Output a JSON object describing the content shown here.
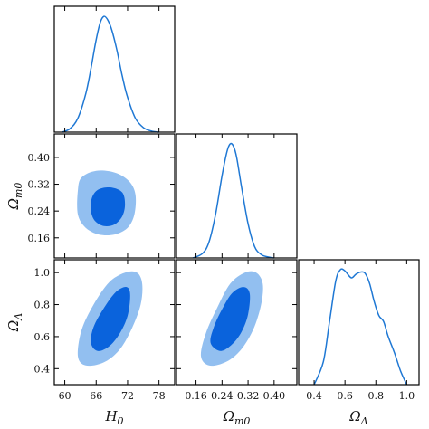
{
  "chart_data": {
    "type": "corner",
    "params": [
      {
        "key": "H0",
        "label_base": "H",
        "label_sub": "0",
        "range": [
          58,
          81
        ],
        "ticks": [
          60,
          66,
          72,
          78
        ]
      },
      {
        "key": "Om",
        "label_base": "Ω",
        "label_sub": "m0",
        "range": [
          0.1,
          0.47
        ],
        "ticks": [
          0.16,
          0.24,
          0.32,
          0.4
        ]
      },
      {
        "key": "OL",
        "label_base": "Ω",
        "label_sub": "Λ",
        "range": [
          0.3,
          1.08
        ],
        "ticks": [
          0.4,
          0.6,
          0.8,
          1.0
        ]
      }
    ],
    "y_ticks": {
      "Om": [
        "0.40",
        "0.32",
        "0.24",
        "0.16"
      ],
      "OL": [
        "1.0",
        "0.8",
        "0.6",
        "0.4"
      ]
    },
    "x_tick_labels": {
      "H0": [
        "60",
        "66",
        "72",
        "78"
      ],
      "Om": [
        "0.16",
        "0.24",
        "0.32",
        "0.40"
      ],
      "OL": [
        "0.4",
        "0.6",
        "0.8",
        "1.0"
      ]
    },
    "marginals": {
      "H0": {
        "x": [
          59.5,
          61,
          62.5,
          64,
          65,
          66,
          66.8,
          67.5,
          68.2,
          69,
          70,
          71,
          72,
          73.5,
          75,
          76.5,
          78
        ],
        "y": [
          0.0,
          0.03,
          0.12,
          0.33,
          0.55,
          0.8,
          0.95,
          1.0,
          0.97,
          0.88,
          0.7,
          0.48,
          0.3,
          0.12,
          0.04,
          0.01,
          0.0
        ]
      },
      "Om": {
        "x": [
          0.15,
          0.18,
          0.2,
          0.22,
          0.24,
          0.255,
          0.265,
          0.275,
          0.285,
          0.3,
          0.32,
          0.34,
          0.36,
          0.38,
          0.4
        ],
        "y": [
          0.0,
          0.04,
          0.14,
          0.38,
          0.72,
          0.93,
          1.0,
          0.98,
          0.88,
          0.62,
          0.3,
          0.1,
          0.03,
          0.01,
          0.0
        ]
      },
      "OL": {
        "x": [
          0.4,
          0.46,
          0.5,
          0.54,
          0.57,
          0.6,
          0.64,
          0.67,
          0.7,
          0.73,
          0.76,
          0.79,
          0.82,
          0.85,
          0.88,
          0.92,
          0.96,
          1.0
        ],
        "y": [
          0.0,
          0.2,
          0.55,
          0.9,
          1.0,
          0.99,
          0.93,
          0.96,
          0.98,
          0.97,
          0.88,
          0.72,
          0.6,
          0.55,
          0.42,
          0.28,
          0.12,
          0.0
        ]
      }
    },
    "contours": {
      "H0_Om": {
        "outer": [
          [
            63.2,
            0.34
          ],
          [
            66,
            0.36
          ],
          [
            69.5,
            0.355
          ],
          [
            72.2,
            0.33
          ],
          [
            73.5,
            0.29
          ],
          [
            73.3,
            0.23
          ],
          [
            72,
            0.19
          ],
          [
            69.5,
            0.17
          ],
          [
            66.5,
            0.17
          ],
          [
            64,
            0.19
          ],
          [
            62.5,
            0.23
          ],
          [
            62.5,
            0.3
          ]
        ],
        "inner": [
          [
            65.2,
            0.28
          ],
          [
            66.5,
            0.305
          ],
          [
            69,
            0.31
          ],
          [
            71,
            0.295
          ],
          [
            71.5,
            0.26
          ],
          [
            71,
            0.225
          ],
          [
            69.5,
            0.2
          ],
          [
            67.5,
            0.195
          ],
          [
            65.8,
            0.21
          ],
          [
            65,
            0.24
          ]
        ]
      },
      "H0_OL": {
        "outer": [
          [
            62.5,
            0.48
          ],
          [
            63.2,
            0.64
          ],
          [
            65.5,
            0.8
          ],
          [
            68.5,
            0.94
          ],
          [
            71.5,
            1.0
          ],
          [
            73.8,
            1.0
          ],
          [
            74.8,
            0.93
          ],
          [
            74.5,
            0.8
          ],
          [
            72.8,
            0.65
          ],
          [
            70.5,
            0.52
          ],
          [
            67.5,
            0.44
          ],
          [
            64,
            0.42
          ]
        ],
        "inner": [
          [
            65,
            0.56
          ],
          [
            65.5,
            0.66
          ],
          [
            67.5,
            0.78
          ],
          [
            69.8,
            0.88
          ],
          [
            71.8,
            0.91
          ],
          [
            72.5,
            0.86
          ],
          [
            72,
            0.73
          ],
          [
            70.5,
            0.62
          ],
          [
            68.5,
            0.54
          ],
          [
            66.3,
            0.51
          ]
        ]
      },
      "Om_OL": {
        "outer": [
          [
            0.175,
            0.48
          ],
          [
            0.19,
            0.62
          ],
          [
            0.225,
            0.78
          ],
          [
            0.265,
            0.93
          ],
          [
            0.31,
            1.0
          ],
          [
            0.345,
            1.0
          ],
          [
            0.365,
            0.93
          ],
          [
            0.36,
            0.8
          ],
          [
            0.335,
            0.64
          ],
          [
            0.295,
            0.51
          ],
          [
            0.25,
            0.44
          ],
          [
            0.2,
            0.42
          ]
        ],
        "inner": [
          [
            0.205,
            0.56
          ],
          [
            0.215,
            0.66
          ],
          [
            0.24,
            0.77
          ],
          [
            0.27,
            0.87
          ],
          [
            0.305,
            0.91
          ],
          [
            0.325,
            0.87
          ],
          [
            0.32,
            0.74
          ],
          [
            0.3,
            0.63
          ],
          [
            0.27,
            0.55
          ],
          [
            0.235,
            0.51
          ]
        ]
      }
    },
    "colors": {
      "line": "#1f78d4",
      "outer": "#92bff0",
      "inner": "#0a63dc"
    }
  }
}
